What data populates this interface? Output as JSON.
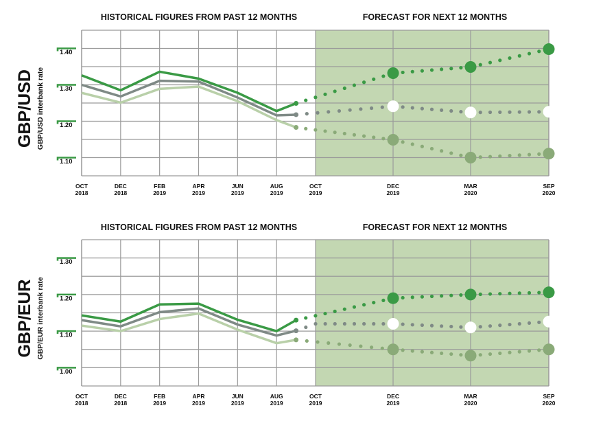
{
  "colors": {
    "high": "#3a9a45",
    "mid": "#7f8a86",
    "low_hist": "#b9d0a9",
    "low_forecast": "#8aaa78",
    "forecast_bg": "#c3d7b2",
    "grid": "#9a9a9a",
    "tick_accent": "#3a9a45",
    "mid_marker": "#ffffff"
  },
  "chart_data": [
    {
      "type": "line",
      "title": "GBP/USD",
      "ylabel": "GBP/USD interbank rate",
      "section_titles": {
        "historical": "HISTORICAL FIGURES FROM PAST 12 MONTHS",
        "forecast": "FORECAST FOR NEXT 12 MONTHS"
      },
      "ylim": [
        1.05,
        1.45
      ],
      "y_ticks": [
        1.4,
        1.3,
        1.2,
        1.1
      ],
      "y_tick_labels": [
        "1.40",
        "1.30",
        "1.20",
        "1.10"
      ],
      "grid_step": 0.05,
      "grid": true,
      "x_tick_labels": [
        {
          "month": "OCT",
          "year": "2018"
        },
        {
          "month": "DEC",
          "year": "2018"
        },
        {
          "month": "FEB",
          "year": "2019"
        },
        {
          "month": "APR",
          "year": "2019"
        },
        {
          "month": "JUN",
          "year": "2019"
        },
        {
          "month": "AUG",
          "year": "2019"
        },
        {
          "month": "OCT",
          "year": "2019"
        },
        {
          "month": "DEC",
          "year": "2019"
        },
        {
          "month": "MAR",
          "year": "2020"
        },
        {
          "month": "SEP",
          "year": "2020"
        }
      ],
      "x_tick_months": [
        0,
        2,
        4,
        6,
        8,
        10,
        12,
        14,
        17,
        23
      ],
      "historical_months": [
        0,
        2,
        4,
        6,
        8,
        10,
        11
      ],
      "forecast_start_month": 12,
      "series": [
        {
          "name": "high",
          "historical": [
            1.326,
            1.285,
            1.336,
            1.317,
            1.278,
            1.228,
            1.249
          ],
          "forecast_months": [
            11,
            14,
            17,
            23
          ],
          "forecast": [
            1.249,
            1.332,
            1.349,
            1.398
          ]
        },
        {
          "name": "mid",
          "historical": [
            1.3,
            1.268,
            1.311,
            1.309,
            1.265,
            1.216,
            1.218
          ],
          "forecast_months": [
            11,
            14,
            17,
            23
          ],
          "forecast": [
            1.218,
            1.241,
            1.224,
            1.226
          ]
        },
        {
          "name": "low",
          "historical": [
            1.278,
            1.251,
            1.289,
            1.295,
            1.255,
            1.203,
            1.183
          ],
          "forecast_months": [
            11,
            14,
            17,
            23
          ],
          "forecast": [
            1.183,
            1.149,
            1.1,
            1.111
          ]
        }
      ]
    },
    {
      "type": "line",
      "title": "GBP/EUR",
      "ylabel": "GBP/EUR interbank rate",
      "section_titles": {
        "historical": "HISTORICAL FIGURES FROM PAST 12 MONTHS",
        "forecast": "FORECAST FOR NEXT 12 MONTHS"
      },
      "ylim": [
        0.95,
        1.35
      ],
      "y_ticks": [
        1.3,
        1.2,
        1.1,
        1.0
      ],
      "y_tick_labels": [
        "1.30",
        "1.20",
        "1.10",
        "1.00"
      ],
      "grid_step": 0.05,
      "grid": true,
      "x_tick_labels": [
        {
          "month": "OCT",
          "year": "2018"
        },
        {
          "month": "DEC",
          "year": "2018"
        },
        {
          "month": "FEB",
          "year": "2019"
        },
        {
          "month": "APR",
          "year": "2019"
        },
        {
          "month": "JUN",
          "year": "2019"
        },
        {
          "month": "AUG",
          "year": "2019"
        },
        {
          "month": "OCT",
          "year": "2019"
        },
        {
          "month": "DEC",
          "year": "2019"
        },
        {
          "month": "MAR",
          "year": "2020"
        },
        {
          "month": "SEP",
          "year": "2020"
        }
      ],
      "x_tick_months": [
        0,
        2,
        4,
        6,
        8,
        10,
        12,
        14,
        17,
        23
      ],
      "historical_months": [
        0,
        2,
        4,
        6,
        8,
        10,
        11
      ],
      "forecast_start_month": 12,
      "series": [
        {
          "name": "high",
          "historical": [
            1.143,
            1.126,
            1.173,
            1.175,
            1.131,
            1.1,
            1.13
          ],
          "forecast_months": [
            11,
            14,
            17,
            23
          ],
          "forecast": [
            1.13,
            1.19,
            1.2,
            1.206
          ]
        },
        {
          "name": "mid",
          "historical": [
            1.13,
            1.113,
            1.152,
            1.162,
            1.118,
            1.088,
            1.101
          ],
          "forecast_months": [
            11,
            12,
            14,
            17,
            23
          ],
          "forecast": [
            1.101,
            1.12,
            1.12,
            1.11,
            1.126
          ]
        },
        {
          "name": "low",
          "historical": [
            1.115,
            1.1,
            1.133,
            1.148,
            1.104,
            1.067,
            1.076
          ],
          "forecast_months": [
            11,
            14,
            17,
            23
          ],
          "forecast": [
            1.076,
            1.05,
            1.033,
            1.05
          ]
        }
      ]
    }
  ]
}
